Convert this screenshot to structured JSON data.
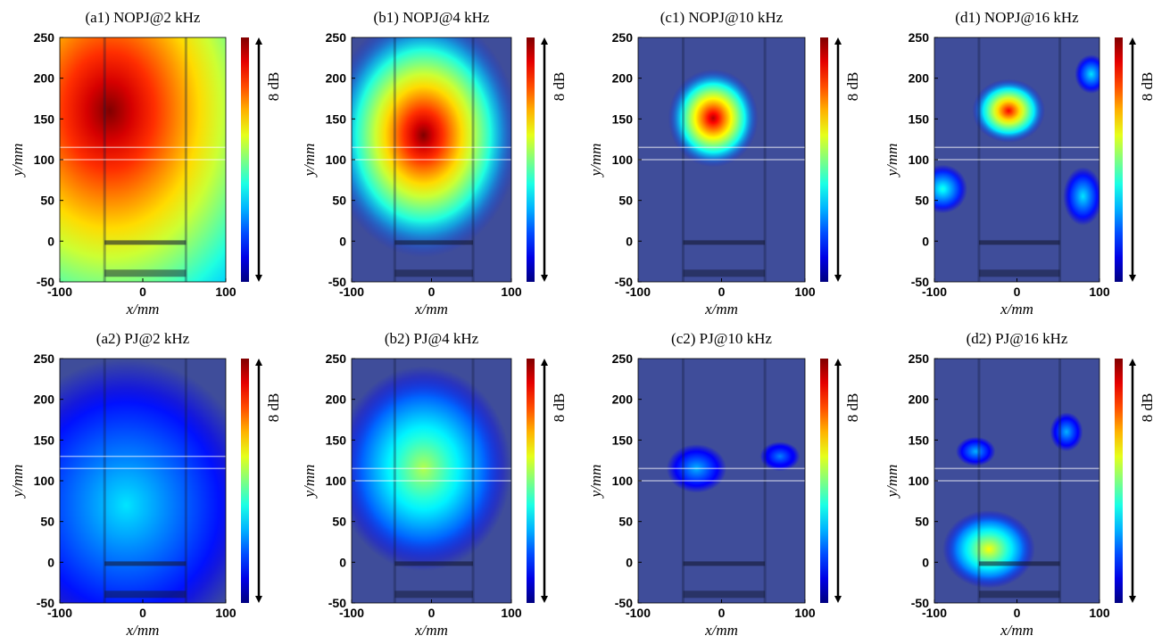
{
  "chart_data": [
    {
      "type": "heatmap",
      "title": "(a1) NOPJ@2 kHz",
      "xlabel": "x/mm",
      "ylabel": "y/mm",
      "colorbar_label": "8 dB",
      "xlim": [
        -100,
        100
      ],
      "ylim": [
        -50,
        250
      ],
      "xticks": [
        -100,
        0,
        100
      ],
      "yticks": [
        -50,
        0,
        50,
        100,
        150,
        200,
        250
      ]
    },
    {
      "type": "heatmap",
      "title": "(b1) NOPJ@4 kHz",
      "xlabel": "x/mm",
      "ylabel": "y/mm",
      "colorbar_label": "8 dB",
      "xlim": [
        -100,
        100
      ],
      "ylim": [
        -50,
        250
      ],
      "xticks": [
        -100,
        0,
        100
      ],
      "yticks": [
        -50,
        0,
        50,
        100,
        150,
        200,
        250
      ]
    },
    {
      "type": "heatmap",
      "title": "(c1) NOPJ@10 kHz",
      "xlabel": "x/mm",
      "ylabel": "y/mm",
      "colorbar_label": "8 dB",
      "xlim": [
        -100,
        100
      ],
      "ylim": [
        -50,
        250
      ],
      "xticks": [
        -100,
        0,
        100
      ],
      "yticks": [
        -50,
        0,
        50,
        100,
        150,
        200,
        250
      ]
    },
    {
      "type": "heatmap",
      "title": "(d1) NOPJ@16 kHz",
      "xlabel": "x/mm",
      "ylabel": "y/mm",
      "colorbar_label": "8 dB",
      "xlim": [
        -100,
        100
      ],
      "ylim": [
        -50,
        250
      ],
      "xticks": [
        -100,
        0,
        100
      ],
      "yticks": [
        -50,
        0,
        50,
        100,
        150,
        200,
        250
      ]
    },
    {
      "type": "heatmap",
      "title": "(a2) PJ@2 kHz",
      "xlabel": "x/mm",
      "ylabel": "y/mm",
      "colorbar_label": "8 dB",
      "xlim": [
        -100,
        100
      ],
      "ylim": [
        -50,
        250
      ],
      "xticks": [
        -100,
        0,
        100
      ],
      "yticks": [
        -50,
        0,
        50,
        100,
        150,
        200,
        250
      ]
    },
    {
      "type": "heatmap",
      "title": "(b2) PJ@4 kHz",
      "xlabel": "x/mm",
      "ylabel": "y/mm",
      "colorbar_label": "8 dB",
      "xlim": [
        -100,
        100
      ],
      "ylim": [
        -50,
        250
      ],
      "xticks": [
        -100,
        0,
        100
      ],
      "yticks": [
        -50,
        0,
        50,
        100,
        150,
        200,
        250
      ]
    },
    {
      "type": "heatmap",
      "title": "(c2) PJ@10 kHz",
      "xlabel": "x/mm",
      "ylabel": "y/mm",
      "colorbar_label": "8 dB",
      "xlim": [
        -100,
        100
      ],
      "ylim": [
        -50,
        250
      ],
      "xticks": [
        -100,
        0,
        100
      ],
      "yticks": [
        -50,
        0,
        50,
        100,
        150,
        200,
        250
      ]
    },
    {
      "type": "heatmap",
      "title": "(d2) PJ@16 kHz",
      "xlabel": "x/mm",
      "ylabel": "y/mm",
      "colorbar_label": "8 dB",
      "xlim": [
        -100,
        100
      ],
      "ylim": [
        -50,
        250
      ],
      "xticks": [
        -100,
        0,
        100
      ],
      "yticks": [
        -50,
        0,
        50,
        100,
        150,
        200,
        250
      ]
    }
  ]
}
